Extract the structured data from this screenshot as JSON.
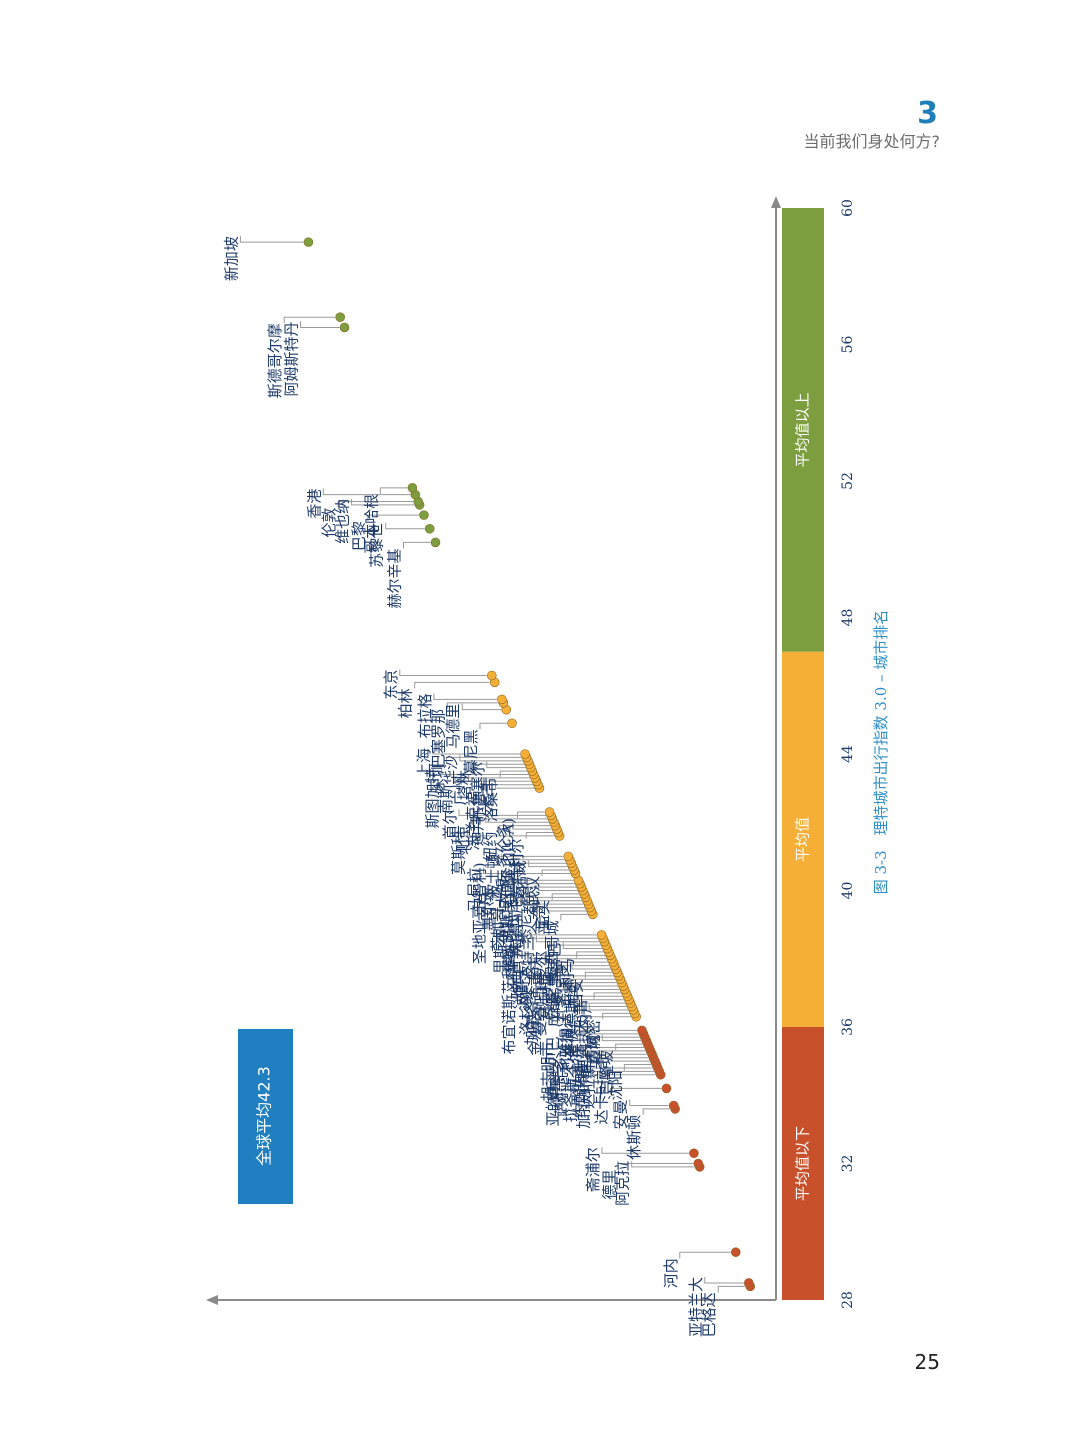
{
  "header": {
    "chapter_number": "3",
    "chapter_title": "当前我们身处何方?"
  },
  "page_number": "25",
  "chart_data": {
    "type": "scatter",
    "title": "图 3-3　理特城市出行指数 3.0 – 城市排名",
    "xlim": [
      28,
      60
    ],
    "x_ticks": [
      "28",
      "32",
      "36",
      "40",
      "44",
      "48",
      "52",
      "56",
      "60"
    ],
    "bands": [
      {
        "label": "平均值以下",
        "from": 28,
        "to": 36,
        "color": "#c8502a"
      },
      {
        "label": "平均值",
        "from": 36,
        "to": 47,
        "color": "#f5ae36"
      },
      {
        "label": "平均值以上",
        "from": 47,
        "to": 60,
        "color": "#7d9e3f"
      }
    ],
    "average_label": "全球平均42.3",
    "average_value": 42.3,
    "colors": {
      "below": "#c8502a",
      "average": "#f5ae36",
      "above": "#7d9e3f",
      "average_box": "#1f7fc0",
      "axis": "#8a8a8a"
    },
    "points": [
      {
        "city": "巴格达",
        "score": 28.4
      },
      {
        "city": "亚特兰大",
        "score": 28.5
      },
      {
        "city": "河内",
        "score": 29.4
      },
      {
        "city": "阿克拉",
        "score": 31.9
      },
      {
        "city": "德里",
        "score": 32.0
      },
      {
        "city": "斋浦尔",
        "score": 32.3
      },
      {
        "city": "休斯顿",
        "score": 33.6
      },
      {
        "city": "安曼",
        "score": 33.7
      },
      {
        "city": "达卡",
        "score": 34.2
      },
      {
        "city": "加拉加斯",
        "score": 34.6
      },
      {
        "city": "拉各斯",
        "score": 34.7
      },
      {
        "city": "德黑兰",
        "score": 34.8
      },
      {
        "city": "沈阳",
        "score": 34.9
      },
      {
        "city": "卡拉奇",
        "score": 35.0
      },
      {
        "city": "达拉斯",
        "score": 35.1
      },
      {
        "city": "拉合尔",
        "score": 35.2
      },
      {
        "city": "萨尔瓦多",
        "score": 35.3
      },
      {
        "city": "胡志明市",
        "score": 35.4
      },
      {
        "city": "吉隆坡",
        "score": 35.5
      },
      {
        "city": "费城",
        "score": 35.6
      },
      {
        "city": "约翰内斯堡",
        "score": 35.7
      },
      {
        "city": "利雅得",
        "score": 35.8
      },
      {
        "city": "亚的斯亚贝巴",
        "score": 35.9
      },
      {
        "city": "金沙萨",
        "score": 36.3
      },
      {
        "city": "迈阿密",
        "score": 36.4
      },
      {
        "city": "天津",
        "score": 36.5
      },
      {
        "city": "雅加达",
        "score": 36.6
      },
      {
        "city": "成都",
        "score": 36.7
      },
      {
        "city": "曼谷",
        "score": 36.8
      },
      {
        "city": "洛杉矶",
        "score": 36.9
      },
      {
        "city": "里约热内卢",
        "score": 37.0
      },
      {
        "city": "圣彼德斯堡",
        "score": 37.1
      },
      {
        "city": "开罗",
        "score": 37.2
      },
      {
        "city": "安卡拉",
        "score": 37.3
      },
      {
        "city": "加尔各答",
        "score": 37.4
      },
      {
        "city": "雅典",
        "score": 37.5
      },
      {
        "city": "西安",
        "score": 37.6
      },
      {
        "city": "圣保罗",
        "score": 37.7
      },
      {
        "city": "罗马",
        "score": 37.8
      },
      {
        "city": "重庆",
        "score": 37.9
      },
      {
        "city": "波哥大",
        "score": 38.0
      },
      {
        "city": "布宜诺斯艾利斯",
        "score": 38.1
      },
      {
        "city": "利马",
        "score": 38.2
      },
      {
        "city": "库里蒂巴",
        "score": 38.3
      },
      {
        "city": "班加罗尔",
        "score": 38.4
      },
      {
        "city": "波特兰",
        "score": 38.5
      },
      {
        "city": "开普敦",
        "score": 38.6
      },
      {
        "city": "里斯本",
        "score": 38.7
      },
      {
        "city": "墨西哥城",
        "score": 39.3
      },
      {
        "city": "金奈",
        "score": 39.4
      },
      {
        "city": "悉尼",
        "score": 39.5
      },
      {
        "city": "华盛顿特区",
        "score": 39.6
      },
      {
        "city": "芝加哥",
        "score": 39.7
      },
      {
        "city": "南京",
        "score": 39.8
      },
      {
        "city": "孟买",
        "score": 39.9
      },
      {
        "city": "都灵",
        "score": 40.0
      },
      {
        "city": "海得拉巴",
        "score": 40.1
      },
      {
        "city": "大阪",
        "score": 40.2
      },
      {
        "city": "墨尔本",
        "score": 40.3
      },
      {
        "city": "马尼拉",
        "score": 40.5
      },
      {
        "city": "武汉",
        "score": 40.6
      },
      {
        "city": "汉诺威",
        "score": 40.7
      },
      {
        "city": "伊斯坦布尔",
        "score": 40.8
      },
      {
        "city": "波士顿",
        "score": 40.9
      },
      {
        "city": "圣地亚哥(智利)",
        "score": 41.0
      },
      {
        "city": "莫斯科",
        "score": 41.6
      },
      {
        "city": "蒙特利尔",
        "score": 41.7
      },
      {
        "city": "多伦多",
        "score": 41.8
      },
      {
        "city": "纽约",
        "score": 41.9
      },
      {
        "city": "迪拜",
        "score": 42.0
      },
      {
        "city": "北京",
        "score": 42.1
      },
      {
        "city": "首尔",
        "score": 42.2
      },
      {
        "city": "旧金山(CA)",
        "score": 42.3
      },
      {
        "city": "米兰",
        "score": 43.0
      },
      {
        "city": "法兰克福",
        "score": 43.1
      },
      {
        "city": "广州",
        "score": 43.2
      },
      {
        "city": "南斯",
        "score": 43.3
      },
      {
        "city": "斯图加特",
        "score": 43.4
      },
      {
        "city": "洛桑市",
        "score": 43.5
      },
      {
        "city": "布鲁塞尔",
        "score": 43.6
      },
      {
        "city": "塔林",
        "score": 43.7
      },
      {
        "city": "华沙",
        "score": 43.8
      },
      {
        "city": "深圳",
        "score": 43.9
      },
      {
        "city": "上海",
        "score": 44.0
      },
      {
        "city": "慕尼黑",
        "score": 44.9
      },
      {
        "city": "马德里",
        "score": 45.3
      },
      {
        "city": "巴塞罗那",
        "score": 45.5
      },
      {
        "city": "布拉格",
        "score": 45.6
      },
      {
        "city": "柏林",
        "score": 46.1
      },
      {
        "city": "东京",
        "score": 46.3
      },
      {
        "city": "赫尔辛基",
        "score": 50.2
      },
      {
        "city": "苏黎世",
        "score": 50.6
      },
      {
        "city": "巴黎",
        "score": 51.0
      },
      {
        "city": "维也纳",
        "score": 51.3
      },
      {
        "city": "伦敦",
        "score": 51.4
      },
      {
        "city": "香港",
        "score": 51.6
      },
      {
        "city": "哥本哈根",
        "score": 51.8
      },
      {
        "city": "阿姆斯特丹",
        "score": 56.5
      },
      {
        "city": "斯德哥尔摩",
        "score": 56.8
      },
      {
        "city": "新加坡",
        "score": 59.0
      }
    ]
  }
}
